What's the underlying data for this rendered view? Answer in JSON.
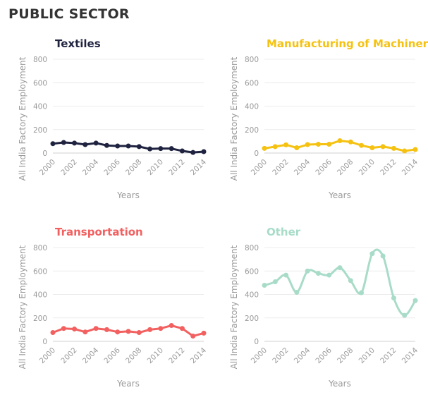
{
  "page_title": "PUBLIC SECTOR",
  "chart_data": [
    {
      "type": "line",
      "title": "Textiles",
      "color": "#1f2340",
      "curve": "linear",
      "xlabel": "Years",
      "ylabel": "All India Factory Employment",
      "ylim": [
        0,
        800
      ],
      "yticks": [
        0,
        200,
        400,
        600,
        800
      ],
      "xticks": [
        2000,
        2002,
        2004,
        2006,
        2008,
        2010,
        2012,
        2014
      ],
      "x": [
        2000,
        2001,
        2002,
        2003,
        2004,
        2005,
        2006,
        2007,
        2008,
        2009,
        2010,
        2011,
        2012,
        2013,
        2014
      ],
      "values": [
        80,
        90,
        85,
        72,
        85,
        65,
        60,
        60,
        55,
        35,
        38,
        38,
        18,
        5,
        12
      ],
      "grid": true
    },
    {
      "type": "line",
      "title": "Manufacturing of Machinery",
      "color": "#f5c211",
      "curve": "linear",
      "xlabel": "Years",
      "ylabel": "All India Factory Employment",
      "ylim": [
        0,
        800
      ],
      "yticks": [
        0,
        200,
        400,
        600,
        800
      ],
      "xticks": [
        2000,
        2002,
        2004,
        2006,
        2008,
        2010,
        2012,
        2014
      ],
      "x": [
        2000,
        2001,
        2002,
        2003,
        2004,
        2005,
        2006,
        2007,
        2008,
        2009,
        2010,
        2011,
        2012,
        2013,
        2014
      ],
      "values": [
        40,
        55,
        70,
        45,
        72,
        75,
        75,
        105,
        95,
        65,
        45,
        55,
        40,
        18,
        30
      ],
      "grid": true
    },
    {
      "type": "line",
      "title": "Transportation",
      "color": "#f26060",
      "curve": "linear",
      "xlabel": "Years",
      "ylabel": "All India Factory Employment",
      "ylim": [
        0,
        800
      ],
      "yticks": [
        0,
        200,
        400,
        600,
        800
      ],
      "xticks": [
        2000,
        2002,
        2004,
        2006,
        2008,
        2010,
        2012,
        2014
      ],
      "x": [
        2000,
        2001,
        2002,
        2003,
        2004,
        2005,
        2006,
        2007,
        2008,
        2009,
        2010,
        2011,
        2012,
        2013,
        2014
      ],
      "values": [
        75,
        110,
        105,
        80,
        110,
        100,
        80,
        85,
        75,
        100,
        110,
        135,
        110,
        45,
        70
      ],
      "grid": true
    },
    {
      "type": "line",
      "title": "Other",
      "color": "#a8dcc8",
      "curve": "smooth",
      "xlabel": "Years",
      "ylabel": "All India Factory Employment",
      "ylim": [
        0,
        800
      ],
      "yticks": [
        0,
        200,
        400,
        600,
        800
      ],
      "xticks": [
        2000,
        2002,
        2004,
        2006,
        2008,
        2010,
        2012,
        2014
      ],
      "x": [
        2000,
        2001,
        2002,
        2003,
        2004,
        2005,
        2006,
        2007,
        2008,
        2009,
        2010,
        2011,
        2012,
        2013,
        2014
      ],
      "values": [
        478,
        508,
        565,
        418,
        600,
        580,
        565,
        628,
        518,
        415,
        748,
        728,
        370,
        222,
        348
      ],
      "grid": true
    }
  ]
}
